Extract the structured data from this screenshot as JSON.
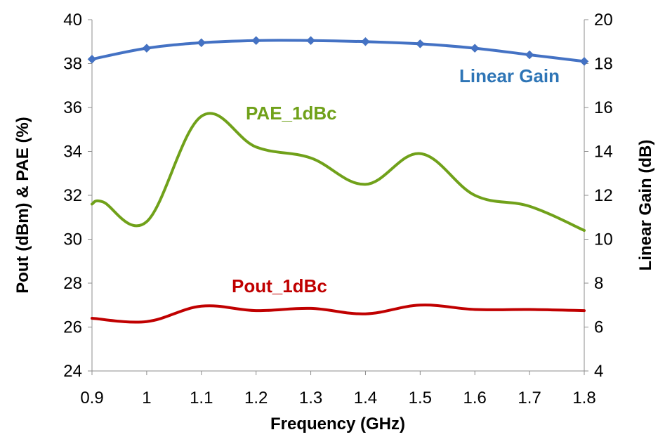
{
  "chart_data": {
    "type": "line",
    "xlabel": "Frequency (GHz)",
    "ylabel_left": "Pout (dBm) & PAE (%)",
    "ylabel_right": "Linear Gain (dB)",
    "xlim": [
      0.9,
      1.8
    ],
    "ylim_left": [
      24,
      40
    ],
    "ylim_right": [
      4,
      20
    ],
    "x_ticks": [
      0.9,
      1,
      1.1,
      1.2,
      1.3,
      1.4,
      1.5,
      1.6,
      1.7,
      1.8
    ],
    "y_ticks_left": [
      24,
      26,
      28,
      30,
      32,
      34,
      36,
      38,
      40
    ],
    "y_ticks_right": [
      4,
      6,
      8,
      10,
      12,
      14,
      16,
      18,
      20
    ],
    "grid": false,
    "series": [
      {
        "name": "Linear Gain",
        "axis": "right",
        "color": "#4472C4",
        "marker": "diamond",
        "x": [
          0.9,
          1.0,
          1.1,
          1.2,
          1.3,
          1.4,
          1.5,
          1.6,
          1.7,
          1.8
        ],
        "y": [
          18.2,
          18.7,
          18.95,
          19.05,
          19.05,
          19.0,
          18.9,
          18.7,
          18.4,
          18.1
        ]
      },
      {
        "name": "PAE_1dBc",
        "axis": "left",
        "color": "#70A11A",
        "marker": "none",
        "x": [
          0.9,
          0.92,
          1.0,
          1.1,
          1.2,
          1.3,
          1.4,
          1.5,
          1.6,
          1.7,
          1.8
        ],
        "y": [
          31.6,
          31.7,
          30.8,
          35.6,
          34.2,
          33.7,
          32.5,
          33.9,
          32.0,
          31.5,
          30.4
        ]
      },
      {
        "name": "Pout_1dBc",
        "axis": "left",
        "color": "#C00000",
        "marker": "none",
        "x": [
          0.9,
          1.0,
          1.1,
          1.2,
          1.3,
          1.4,
          1.5,
          1.6,
          1.7,
          1.8
        ],
        "y": [
          26.4,
          26.25,
          26.95,
          26.75,
          26.85,
          26.6,
          27.0,
          26.8,
          26.8,
          26.75
        ]
      }
    ]
  }
}
